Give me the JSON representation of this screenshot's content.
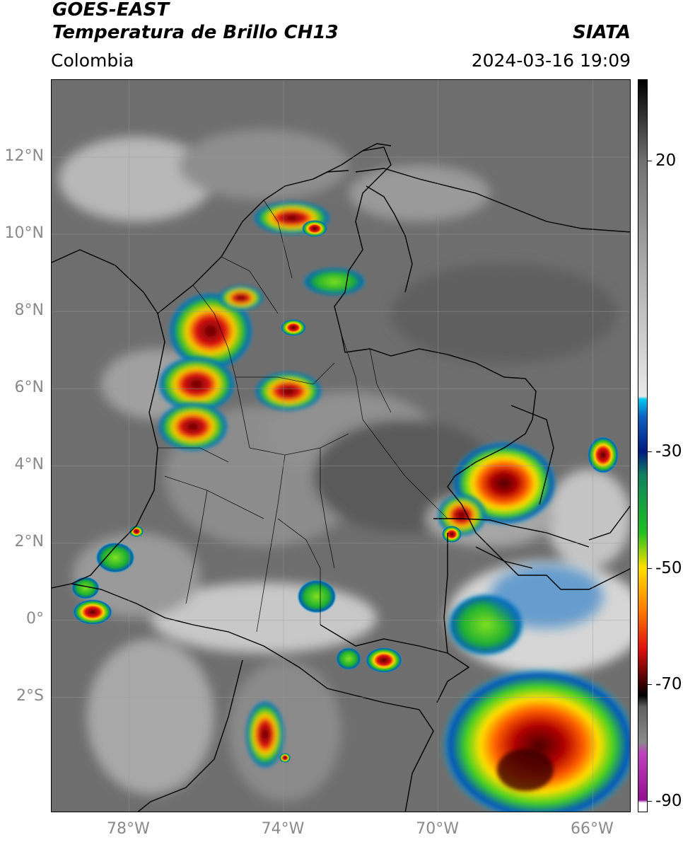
{
  "header": {
    "satellite": "GOES-EAST",
    "product": "Temperatura de Brillo CH13",
    "organization": "SIATA",
    "region": "Colombia",
    "datetime": "2024-03-16 19:09"
  },
  "map": {
    "lon_range": [
      -80,
      -65
    ],
    "lat_range": [
      -5,
      14
    ],
    "lat_ticks": [
      {
        "value": 12,
        "label": "12°N"
      },
      {
        "value": 10,
        "label": "10°N"
      },
      {
        "value": 8,
        "label": "8°N"
      },
      {
        "value": 6,
        "label": "6°N"
      },
      {
        "value": 4,
        "label": "4°N"
      },
      {
        "value": 2,
        "label": "2°N"
      },
      {
        "value": 0,
        "label": "0°"
      },
      {
        "value": -2,
        "label": "2°S"
      }
    ],
    "lon_ticks": [
      {
        "value": -78,
        "label": "78°W"
      },
      {
        "value": -74,
        "label": "74°W"
      },
      {
        "value": -70,
        "label": "70°W"
      },
      {
        "value": -66,
        "label": "66°W"
      }
    ],
    "gridlines": true
  },
  "colorbar": {
    "range": [
      -92,
      34
    ],
    "ticks": [
      {
        "value": 20,
        "label": "20"
      },
      {
        "value": -30,
        "label": "-30"
      },
      {
        "value": -50,
        "label": "-50"
      },
      {
        "value": -70,
        "label": "-70"
      },
      {
        "value": -90,
        "label": "-90"
      }
    ],
    "colors": {
      "white": "#ffffff",
      "magenta": "#c040c0",
      "purple": "#901090",
      "dark_red": "#3a0000",
      "red": "#e01010",
      "orange": "#ff8000",
      "yellow": "#ffe000",
      "green": "#20c020",
      "dark_blue": "#001a80",
      "cyan": "#00c8f0",
      "light_gray": "#e8e8e8",
      "black": "#000000"
    }
  }
}
